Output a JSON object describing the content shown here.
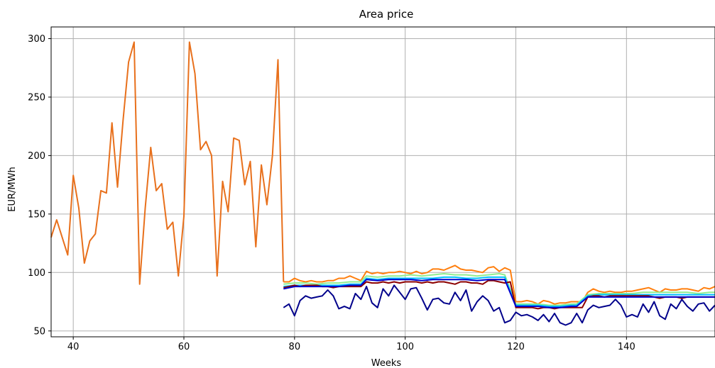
{
  "chart_data": {
    "type": "line",
    "title": "Area price",
    "xlabel": "Weeks",
    "ylabel": "EUR/MWh",
    "xlim": [
      36,
      156
    ],
    "ylim": [
      45,
      310
    ],
    "xticks": [
      40,
      60,
      80,
      100,
      120,
      140
    ],
    "yticks": [
      50,
      100,
      150,
      200,
      250,
      300
    ],
    "grid": true,
    "legend": "none",
    "history": {
      "x": [
        36,
        37,
        38,
        39,
        40,
        41,
        42,
        43,
        44,
        45,
        46,
        47,
        48,
        49,
        50,
        51,
        52,
        53,
        54,
        55,
        56,
        57,
        58,
        59,
        60,
        61,
        62,
        63,
        64,
        65,
        66,
        67,
        68,
        69,
        70,
        71,
        72,
        73,
        74,
        75,
        76,
        77,
        78
      ],
      "values": [
        130,
        145,
        130,
        115,
        183,
        155,
        108,
        127,
        133,
        170,
        168,
        228,
        173,
        230,
        280,
        297,
        90,
        155,
        207,
        170,
        176,
        137,
        143,
        97,
        148,
        297,
        270,
        205,
        212,
        200,
        97,
        178,
        152,
        215,
        213,
        175,
        195,
        122,
        192,
        158,
        200,
        282,
        92
      ],
      "color": "#e8701c"
    },
    "series": [
      {
        "color": "#ff7f0e",
        "x": [
          78,
          79,
          80,
          81,
          82,
          83,
          84,
          85,
          86,
          87,
          88,
          89,
          90,
          91,
          92,
          93,
          94,
          95,
          96,
          97,
          98,
          99,
          100,
          101,
          102,
          103,
          104,
          105,
          106,
          107,
          108,
          109,
          110,
          111,
          112,
          113,
          114,
          115,
          116,
          117,
          118,
          119,
          120,
          121,
          122,
          123,
          124,
          125,
          126,
          127,
          128,
          129,
          130,
          131,
          132,
          133,
          134,
          135,
          136,
          137,
          138,
          139,
          140,
          141,
          142,
          143,
          144,
          145,
          146,
          147,
          148,
          149,
          150,
          151,
          152,
          153,
          154,
          155,
          156
        ],
        "values": [
          92,
          92,
          95,
          93,
          92,
          93,
          92,
          92,
          93,
          93,
          95,
          95,
          97,
          95,
          93,
          101,
          99,
          100,
          99,
          100,
          100,
          101,
          100,
          99,
          101,
          99,
          100,
          103,
          103,
          102,
          104,
          106,
          103,
          102,
          102,
          101,
          100,
          104,
          105,
          101,
          104,
          102,
          75,
          75,
          76,
          75,
          73,
          76,
          75,
          73,
          74,
          74,
          75,
          75,
          75,
          83,
          86,
          84,
          83,
          84,
          83,
          83,
          84,
          84,
          85,
          86,
          87,
          85,
          83,
          86,
          85,
          85,
          86,
          86,
          85,
          84,
          87,
          86,
          88
        ]
      },
      {
        "color": "#90ee90",
        "x": [
          78,
          80,
          82,
          84,
          86,
          88,
          90,
          92,
          93,
          95,
          97,
          99,
          101,
          103,
          105,
          107,
          109,
          111,
          113,
          115,
          117,
          118,
          120,
          122,
          124,
          126,
          128,
          130,
          131,
          133,
          135,
          137,
          139,
          141,
          143,
          145,
          147,
          149,
          151,
          153,
          155,
          156
        ],
        "values": [
          90,
          91,
          91,
          90,
          91,
          91,
          92,
          92,
          97,
          96,
          97,
          97,
          98,
          97,
          98,
          99,
          98,
          98,
          97,
          98,
          99,
          98,
          73,
          73,
          73,
          72,
          72,
          73,
          73,
          81,
          82,
          82,
          82,
          82,
          83,
          83,
          83,
          83,
          83,
          82,
          83,
          83
        ]
      },
      {
        "color": "#00bfff",
        "x": [
          78,
          80,
          82,
          84,
          86,
          88,
          90,
          92,
          93,
          95,
          97,
          99,
          101,
          103,
          105,
          107,
          109,
          111,
          113,
          115,
          117,
          118,
          120,
          122,
          124,
          126,
          128,
          130,
          131,
          133,
          135,
          137,
          139,
          141,
          143,
          145,
          147,
          149,
          151,
          153,
          155,
          156
        ],
        "values": [
          88,
          89,
          89,
          89,
          89,
          89,
          90,
          90,
          95,
          94,
          95,
          95,
          95,
          95,
          95,
          96,
          96,
          95,
          95,
          96,
          96,
          96,
          72,
          72,
          72,
          71,
          71,
          72,
          72,
          80,
          81,
          81,
          81,
          81,
          81,
          81,
          81,
          81,
          81,
          81,
          81,
          81
        ]
      },
      {
        "color": "#8b0000",
        "x": [
          78,
          79,
          80,
          81,
          82,
          83,
          84,
          85,
          86,
          87,
          88,
          89,
          90,
          91,
          92,
          93,
          94,
          95,
          96,
          97,
          98,
          99,
          100,
          101,
          102,
          103,
          104,
          105,
          106,
          107,
          108,
          109,
          110,
          111,
          112,
          113,
          114,
          115,
          116,
          117,
          118,
          119,
          120,
          121,
          122,
          123,
          124,
          125,
          126,
          127,
          128,
          129,
          130,
          131,
          132,
          133,
          134,
          135,
          136,
          137,
          138,
          139,
          140,
          141,
          142,
          143,
          144,
          145,
          146,
          147,
          148,
          149,
          150,
          151,
          152,
          153,
          154,
          155,
          156
        ],
        "values": [
          87,
          88,
          89,
          88,
          89,
          89,
          89,
          88,
          88,
          87,
          88,
          88,
          88,
          88,
          88,
          92,
          91,
          91,
          92,
          91,
          92,
          91,
          92,
          92,
          92,
          91,
          92,
          91,
          92,
          92,
          91,
          90,
          92,
          92,
          91,
          91,
          90,
          93,
          93,
          92,
          91,
          92,
          70,
          70,
          70,
          70,
          69,
          70,
          70,
          69,
          70,
          70,
          70,
          70,
          70,
          79,
          80,
          80,
          79,
          80,
          80,
          80,
          80,
          80,
          80,
          80,
          80,
          79,
          78,
          79,
          79,
          79,
          78,
          79,
          79,
          79,
          79,
          79,
          79
        ]
      },
      {
        "color": "#0000cd",
        "x": [
          78,
          80,
          82,
          84,
          86,
          88,
          90,
          92,
          93,
          95,
          97,
          99,
          101,
          103,
          105,
          107,
          109,
          111,
          113,
          115,
          117,
          118,
          120,
          122,
          124,
          126,
          128,
          130,
          131,
          133,
          135,
          137,
          139,
          141,
          143,
          145,
          147,
          149,
          151,
          153,
          155,
          156
        ],
        "values": [
          86,
          88,
          88,
          88,
          88,
          88,
          89,
          89,
          94,
          93,
          94,
          94,
          94,
          93,
          94,
          94,
          94,
          94,
          93,
          94,
          94,
          94,
          71,
          71,
          71,
          70,
          70,
          71,
          71,
          79,
          79,
          79,
          79,
          79,
          79,
          79,
          79,
          79,
          79,
          79,
          79,
          79
        ]
      },
      {
        "color": "#00008b",
        "x": [
          78,
          79,
          80,
          81,
          82,
          83,
          84,
          85,
          86,
          87,
          88,
          89,
          90,
          91,
          92,
          93,
          94,
          95,
          96,
          97,
          98,
          99,
          100,
          101,
          102,
          103,
          104,
          105,
          106,
          107,
          108,
          109,
          110,
          111,
          112,
          113,
          114,
          115,
          116,
          117,
          118,
          119,
          120,
          121,
          122,
          123,
          124,
          125,
          126,
          127,
          128,
          129,
          130,
          131,
          132,
          133,
          134,
          135,
          136,
          137,
          138,
          139,
          140,
          141,
          142,
          143,
          144,
          145,
          146,
          147,
          148,
          149,
          150,
          151,
          152,
          153,
          154,
          155,
          156
        ],
        "values": [
          70,
          73,
          63,
          76,
          80,
          78,
          79,
          80,
          85,
          80,
          69,
          71,
          69,
          82,
          77,
          88,
          74,
          70,
          86,
          80,
          89,
          83,
          77,
          86,
          87,
          78,
          68,
          77,
          78,
          74,
          73,
          83,
          76,
          85,
          67,
          75,
          80,
          76,
          67,
          70,
          57,
          59,
          66,
          63,
          64,
          62,
          59,
          64,
          58,
          65,
          57,
          55,
          57,
          65,
          57,
          68,
          72,
          70,
          71,
          72,
          77,
          72,
          62,
          64,
          62,
          73,
          66,
          75,
          63,
          60,
          73,
          69,
          77,
          71,
          67,
          73,
          74,
          67,
          72
        ]
      }
    ]
  }
}
